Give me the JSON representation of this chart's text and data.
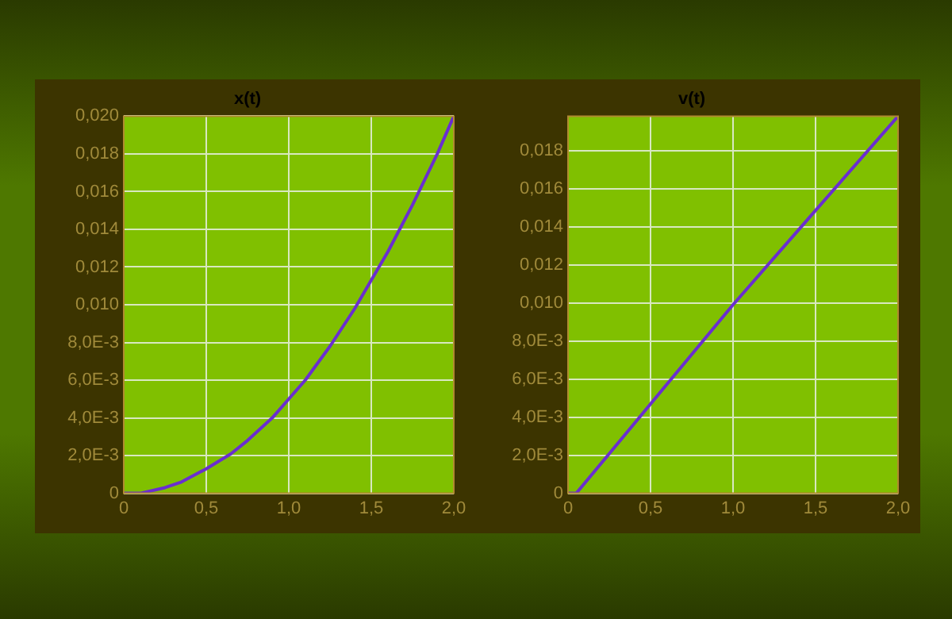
{
  "chart_data": [
    {
      "type": "line",
      "title": "x(t)",
      "x": [
        0,
        0.1,
        0.25,
        0.35,
        0.5,
        0.65,
        0.75,
        0.9,
        1,
        1.1,
        1.25,
        1.4,
        1.5,
        1.6,
        1.75,
        1.9,
        2
      ],
      "series": [
        {
          "color": "#6a2ed0",
          "values": [
            0,
            0,
            0.0003,
            0.0006,
            0.0013,
            0.0021,
            0.0028,
            0.004,
            0.005,
            0.006,
            0.0078,
            0.0098,
            0.0113,
            0.0128,
            0.0153,
            0.018,
            0.02
          ]
        }
      ],
      "xlim": [
        0,
        2
      ],
      "xticks": [
        0,
        {
          "value": 0.5,
          "label": "0,5"
        },
        {
          "value": 1,
          "label": "1,0"
        },
        {
          "value": 1.5,
          "label": "1,5"
        },
        {
          "value": 2,
          "label": "2,0"
        }
      ],
      "ylim": [
        0,
        0.02
      ],
      "yticks": [
        0,
        {
          "value": 0.002,
          "label": "2,0E-3"
        },
        {
          "value": 0.004,
          "label": "4,0E-3"
        },
        {
          "value": 0.006,
          "label": "6,0E-3"
        },
        {
          "value": 0.008,
          "label": "8,0E-3"
        },
        {
          "value": 0.01,
          "label": "0,010"
        },
        {
          "value": 0.012,
          "label": "0,012"
        },
        {
          "value": 0.014,
          "label": "0,014"
        },
        {
          "value": 0.016,
          "label": "0,016"
        },
        {
          "value": 0.018,
          "label": "0,018"
        },
        {
          "value": 0.02,
          "label": "0,020"
        }
      ],
      "grid": true,
      "legend": false,
      "marker": "none",
      "line_style": "solid"
    },
    {
      "type": "line",
      "title": "v(t)",
      "x": [
        0,
        0.05,
        1,
        2
      ],
      "series": [
        {
          "color": "#6a2ed0",
          "values": [
            0,
            0,
            0.0099,
            0.0198
          ]
        }
      ],
      "xlim": [
        0,
        2
      ],
      "xticks": [
        0,
        {
          "value": 0.5,
          "label": "0,5"
        },
        {
          "value": 1,
          "label": "1,0"
        },
        {
          "value": 1.5,
          "label": "1,5"
        },
        {
          "value": 2,
          "label": "2,0"
        }
      ],
      "ylim": [
        0,
        0.0198
      ],
      "yticks": [
        0,
        {
          "value": 0.002,
          "label": "2,0E-3"
        },
        {
          "value": 0.004,
          "label": "4,0E-3"
        },
        {
          "value": 0.006,
          "label": "6,0E-3"
        },
        {
          "value": 0.008,
          "label": "8,0E-3"
        },
        {
          "value": 0.01,
          "label": "0,010"
        },
        {
          "value": 0.012,
          "label": "0,012"
        },
        {
          "value": 0.014,
          "label": "0,014"
        },
        {
          "value": 0.016,
          "label": "0,016"
        },
        {
          "value": 0.018,
          "label": "0,018"
        }
      ],
      "grid": true,
      "legend": false,
      "marker": "none",
      "line_style": "solid"
    }
  ]
}
